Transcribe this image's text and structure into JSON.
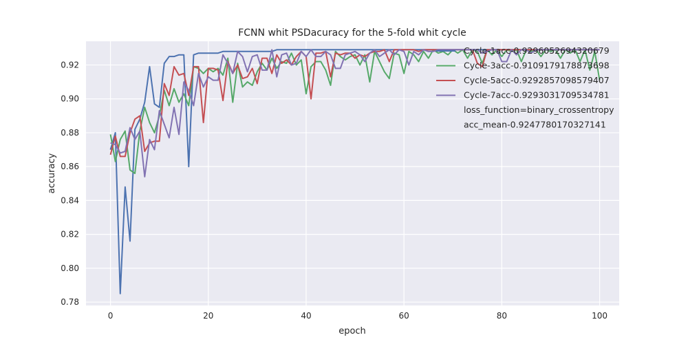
{
  "chart_data": {
    "type": "line",
    "title": "FCNN whit PSDacuracy for the 5-fold whit cycle",
    "xlabel": "epoch",
    "ylabel": "accuracy",
    "xlim": [
      -5,
      104
    ],
    "ylim": [
      0.778,
      0.934
    ],
    "xticks": [
      0,
      20,
      40,
      60,
      80,
      100
    ],
    "yticks": [
      0.78,
      0.8,
      0.82,
      0.84,
      0.86,
      0.88,
      0.9,
      0.92
    ],
    "xtick_labels": [
      "0",
      "20",
      "40",
      "60",
      "80",
      "100"
    ],
    "ytick_labels": [
      "0.78",
      "0.80",
      "0.82",
      "0.84",
      "0.86",
      "0.88",
      "0.90",
      "0.92"
    ],
    "grid": true,
    "legend_position": "top-right",
    "series": [
      {
        "name": "Cycle-1acc-0.9296052694320679",
        "color": "#4c72b0",
        "values": [
          0.87,
          0.88,
          0.785,
          0.848,
          0.816,
          0.882,
          0.888,
          0.898,
          0.919,
          0.897,
          0.895,
          0.921,
          0.925,
          0.925,
          0.926,
          0.926,
          0.86,
          0.926,
          0.927,
          0.927,
          0.927,
          0.927,
          0.927,
          0.928,
          0.928,
          0.928,
          0.928,
          0.928,
          0.928,
          0.928,
          0.928,
          0.928,
          0.928,
          0.928,
          0.929,
          0.929,
          0.929,
          0.929,
          0.929,
          0.929,
          0.929,
          0.929,
          0.929,
          0.929,
          0.929,
          0.929,
          0.929,
          0.929,
          0.929,
          0.929,
          0.929,
          0.929,
          0.929,
          0.929,
          0.929,
          0.929,
          0.929,
          0.929,
          0.929,
          0.929,
          0.929,
          0.929,
          0.929,
          0.929,
          0.929,
          0.929,
          0.929,
          0.929,
          0.929,
          0.929,
          0.929,
          0.929,
          0.929,
          0.929,
          0.929,
          0.929,
          0.929,
          0.929,
          0.929,
          0.929,
          0.929,
          0.929,
          0.929,
          0.929,
          0.929,
          0.929,
          0.929,
          0.929,
          0.929,
          0.929,
          0.929,
          0.929,
          0.929,
          0.929,
          0.929,
          0.929,
          0.929,
          0.929,
          0.929,
          0.929,
          0.929
        ]
      },
      {
        "name": "Cycle-3acc-0.9109179178873698",
        "color": "#55a868",
        "values": [
          0.879,
          0.863,
          0.876,
          0.881,
          0.858,
          0.856,
          0.881,
          0.895,
          0.886,
          0.88,
          0.89,
          0.905,
          0.896,
          0.906,
          0.898,
          0.903,
          0.896,
          0.919,
          0.918,
          0.915,
          0.918,
          0.916,
          0.918,
          0.914,
          0.924,
          0.898,
          0.921,
          0.907,
          0.91,
          0.908,
          0.916,
          0.921,
          0.917,
          0.924,
          0.918,
          0.922,
          0.921,
          0.927,
          0.92,
          0.923,
          0.903,
          0.919,
          0.922,
          0.922,
          0.917,
          0.908,
          0.928,
          0.925,
          0.923,
          0.925,
          0.926,
          0.92,
          0.926,
          0.91,
          0.928,
          0.922,
          0.916,
          0.912,
          0.927,
          0.926,
          0.915,
          0.928,
          0.926,
          0.922,
          0.928,
          0.924,
          0.929,
          0.927,
          0.928,
          0.926,
          0.929,
          0.927,
          0.929,
          0.924,
          0.929,
          0.928,
          0.921,
          0.929,
          0.926,
          0.929,
          0.925,
          0.929,
          0.928,
          0.929,
          0.922,
          0.929,
          0.928,
          0.929,
          0.925,
          0.929,
          0.928,
          0.929,
          0.924,
          0.929,
          0.927,
          0.929,
          0.922,
          0.929,
          0.917,
          0.928,
          0.911
        ]
      },
      {
        "name": "Cycle-5acc-0.9292857098579407",
        "color": "#c44e52",
        "values": [
          0.867,
          0.878,
          0.866,
          0.866,
          0.88,
          0.888,
          0.89,
          0.869,
          0.874,
          0.875,
          0.875,
          0.909,
          0.902,
          0.919,
          0.914,
          0.915,
          0.902,
          0.919,
          0.919,
          0.886,
          0.918,
          0.918,
          0.917,
          0.899,
          0.922,
          0.915,
          0.92,
          0.912,
          0.913,
          0.918,
          0.909,
          0.924,
          0.924,
          0.915,
          0.926,
          0.921,
          0.923,
          0.92,
          0.925,
          0.928,
          0.925,
          0.9,
          0.927,
          0.927,
          0.928,
          0.913,
          0.927,
          0.926,
          0.927,
          0.927,
          0.924,
          0.926,
          0.925,
          0.927,
          0.928,
          0.928,
          0.929,
          0.922,
          0.929,
          0.929,
          0.929,
          0.929,
          0.929,
          0.928,
          0.929,
          0.929,
          0.929,
          0.929,
          0.929,
          0.929,
          0.929,
          0.929,
          0.929,
          0.929,
          0.929,
          0.921,
          0.919,
          0.929,
          0.929,
          0.929,
          0.929,
          0.929,
          0.929,
          0.929,
          0.929,
          0.929,
          0.929,
          0.929,
          0.929,
          0.929,
          0.929,
          0.929,
          0.929,
          0.929,
          0.929,
          0.929,
          0.929,
          0.929,
          0.929,
          0.929,
          0.929
        ]
      },
      {
        "name": "Cycle-7acc-0.9293031709534781",
        "color": "#8172b2",
        "values": [
          0.874,
          0.873,
          0.868,
          0.869,
          0.883,
          0.876,
          0.881,
          0.854,
          0.876,
          0.87,
          0.893,
          0.885,
          0.877,
          0.895,
          0.879,
          0.91,
          0.905,
          0.896,
          0.915,
          0.907,
          0.913,
          0.911,
          0.911,
          0.926,
          0.921,
          0.915,
          0.928,
          0.925,
          0.916,
          0.925,
          0.926,
          0.917,
          0.917,
          0.929,
          0.913,
          0.926,
          0.927,
          0.92,
          0.921,
          0.928,
          0.925,
          0.929,
          0.925,
          0.925,
          0.928,
          0.926,
          0.918,
          0.918,
          0.926,
          0.927,
          0.928,
          0.926,
          0.922,
          0.927,
          0.929,
          0.925,
          0.927,
          0.929,
          0.926,
          0.929,
          0.928,
          0.92,
          0.928,
          0.926,
          0.929,
          0.928,
          0.928,
          0.929,
          0.929,
          0.929,
          0.929,
          0.929,
          0.929,
          0.929,
          0.929,
          0.929,
          0.927,
          0.928,
          0.929,
          0.929,
          0.922,
          0.922,
          0.929,
          0.926,
          0.929,
          0.929,
          0.927,
          0.929,
          0.929,
          0.929,
          0.929,
          0.929,
          0.929,
          0.929,
          0.929,
          0.929,
          0.929,
          0.929,
          0.929,
          0.929,
          0.929
        ]
      }
    ],
    "legend_extra": [
      "loss_function=binary_crossentropy",
      "acc_mean-0.9247780170327141"
    ]
  }
}
